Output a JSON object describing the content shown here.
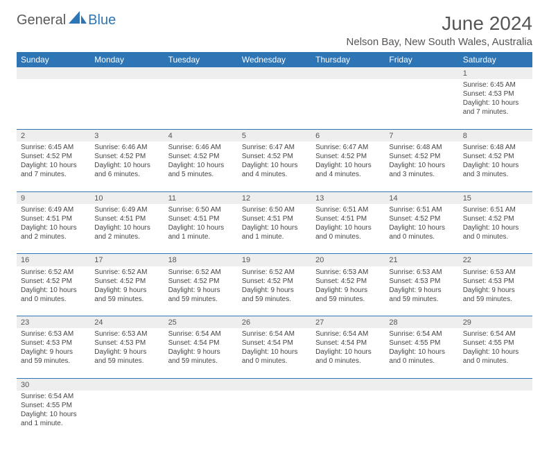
{
  "logo": {
    "text1": "General",
    "text2": "Blue"
  },
  "header": {
    "month_title": "June 2024",
    "location": "Nelson Bay, New South Wales, Australia"
  },
  "calendar": {
    "type": "table",
    "background_color": "#ffffff",
    "header_bg": "#2e75b6",
    "header_fg": "#ffffff",
    "daynum_bg": "#eeeeee",
    "row_divider": "#2e75b6",
    "font_family": "Arial",
    "header_fontsize": 12,
    "daynum_fontsize": 11,
    "cell_fontsize": 10,
    "columns": [
      "Sunday",
      "Monday",
      "Tuesday",
      "Wednesday",
      "Thursday",
      "Friday",
      "Saturday"
    ],
    "weeks": [
      [
        null,
        null,
        null,
        null,
        null,
        null,
        {
          "n": "1",
          "sr": "Sunrise: 6:45 AM",
          "ss": "Sunset: 4:53 PM",
          "dl": "Daylight: 10 hours and 7 minutes."
        }
      ],
      [
        {
          "n": "2",
          "sr": "Sunrise: 6:45 AM",
          "ss": "Sunset: 4:52 PM",
          "dl": "Daylight: 10 hours and 7 minutes."
        },
        {
          "n": "3",
          "sr": "Sunrise: 6:46 AM",
          "ss": "Sunset: 4:52 PM",
          "dl": "Daylight: 10 hours and 6 minutes."
        },
        {
          "n": "4",
          "sr": "Sunrise: 6:46 AM",
          "ss": "Sunset: 4:52 PM",
          "dl": "Daylight: 10 hours and 5 minutes."
        },
        {
          "n": "5",
          "sr": "Sunrise: 6:47 AM",
          "ss": "Sunset: 4:52 PM",
          "dl": "Daylight: 10 hours and 4 minutes."
        },
        {
          "n": "6",
          "sr": "Sunrise: 6:47 AM",
          "ss": "Sunset: 4:52 PM",
          "dl": "Daylight: 10 hours and 4 minutes."
        },
        {
          "n": "7",
          "sr": "Sunrise: 6:48 AM",
          "ss": "Sunset: 4:52 PM",
          "dl": "Daylight: 10 hours and 3 minutes."
        },
        {
          "n": "8",
          "sr": "Sunrise: 6:48 AM",
          "ss": "Sunset: 4:52 PM",
          "dl": "Daylight: 10 hours and 3 minutes."
        }
      ],
      [
        {
          "n": "9",
          "sr": "Sunrise: 6:49 AM",
          "ss": "Sunset: 4:51 PM",
          "dl": "Daylight: 10 hours and 2 minutes."
        },
        {
          "n": "10",
          "sr": "Sunrise: 6:49 AM",
          "ss": "Sunset: 4:51 PM",
          "dl": "Daylight: 10 hours and 2 minutes."
        },
        {
          "n": "11",
          "sr": "Sunrise: 6:50 AM",
          "ss": "Sunset: 4:51 PM",
          "dl": "Daylight: 10 hours and 1 minute."
        },
        {
          "n": "12",
          "sr": "Sunrise: 6:50 AM",
          "ss": "Sunset: 4:51 PM",
          "dl": "Daylight: 10 hours and 1 minute."
        },
        {
          "n": "13",
          "sr": "Sunrise: 6:51 AM",
          "ss": "Sunset: 4:51 PM",
          "dl": "Daylight: 10 hours and 0 minutes."
        },
        {
          "n": "14",
          "sr": "Sunrise: 6:51 AM",
          "ss": "Sunset: 4:52 PM",
          "dl": "Daylight: 10 hours and 0 minutes."
        },
        {
          "n": "15",
          "sr": "Sunrise: 6:51 AM",
          "ss": "Sunset: 4:52 PM",
          "dl": "Daylight: 10 hours and 0 minutes."
        }
      ],
      [
        {
          "n": "16",
          "sr": "Sunrise: 6:52 AM",
          "ss": "Sunset: 4:52 PM",
          "dl": "Daylight: 10 hours and 0 minutes."
        },
        {
          "n": "17",
          "sr": "Sunrise: 6:52 AM",
          "ss": "Sunset: 4:52 PM",
          "dl": "Daylight: 9 hours and 59 minutes."
        },
        {
          "n": "18",
          "sr": "Sunrise: 6:52 AM",
          "ss": "Sunset: 4:52 PM",
          "dl": "Daylight: 9 hours and 59 minutes."
        },
        {
          "n": "19",
          "sr": "Sunrise: 6:52 AM",
          "ss": "Sunset: 4:52 PM",
          "dl": "Daylight: 9 hours and 59 minutes."
        },
        {
          "n": "20",
          "sr": "Sunrise: 6:53 AM",
          "ss": "Sunset: 4:52 PM",
          "dl": "Daylight: 9 hours and 59 minutes."
        },
        {
          "n": "21",
          "sr": "Sunrise: 6:53 AM",
          "ss": "Sunset: 4:53 PM",
          "dl": "Daylight: 9 hours and 59 minutes."
        },
        {
          "n": "22",
          "sr": "Sunrise: 6:53 AM",
          "ss": "Sunset: 4:53 PM",
          "dl": "Daylight: 9 hours and 59 minutes."
        }
      ],
      [
        {
          "n": "23",
          "sr": "Sunrise: 6:53 AM",
          "ss": "Sunset: 4:53 PM",
          "dl": "Daylight: 9 hours and 59 minutes."
        },
        {
          "n": "24",
          "sr": "Sunrise: 6:53 AM",
          "ss": "Sunset: 4:53 PM",
          "dl": "Daylight: 9 hours and 59 minutes."
        },
        {
          "n": "25",
          "sr": "Sunrise: 6:54 AM",
          "ss": "Sunset: 4:54 PM",
          "dl": "Daylight: 9 hours and 59 minutes."
        },
        {
          "n": "26",
          "sr": "Sunrise: 6:54 AM",
          "ss": "Sunset: 4:54 PM",
          "dl": "Daylight: 10 hours and 0 minutes."
        },
        {
          "n": "27",
          "sr": "Sunrise: 6:54 AM",
          "ss": "Sunset: 4:54 PM",
          "dl": "Daylight: 10 hours and 0 minutes."
        },
        {
          "n": "28",
          "sr": "Sunrise: 6:54 AM",
          "ss": "Sunset: 4:55 PM",
          "dl": "Daylight: 10 hours and 0 minutes."
        },
        {
          "n": "29",
          "sr": "Sunrise: 6:54 AM",
          "ss": "Sunset: 4:55 PM",
          "dl": "Daylight: 10 hours and 0 minutes."
        }
      ],
      [
        {
          "n": "30",
          "sr": "Sunrise: 6:54 AM",
          "ss": "Sunset: 4:55 PM",
          "dl": "Daylight: 10 hours and 1 minute."
        },
        null,
        null,
        null,
        null,
        null,
        null
      ]
    ]
  }
}
